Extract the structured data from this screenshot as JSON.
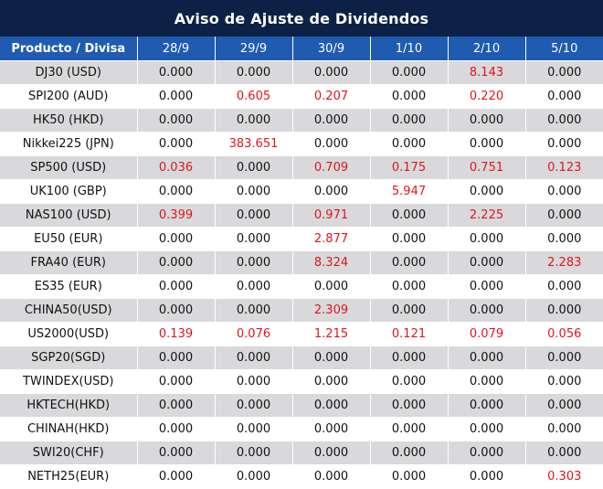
{
  "title": "Aviso de Ajuste de Dividendos",
  "header": [
    "Producto / Divisa",
    "28/9",
    "29/9",
    "30/9",
    "1/10",
    "2/10",
    "5/10"
  ],
  "colors": {
    "title_bg": "#0d2147",
    "header_bg": "#1f5bb0",
    "shaded_row": "#d9d9dc",
    "highlight_text": "#e0141e"
  },
  "rows": [
    {
      "product": "DJ30 (USD)",
      "values": [
        "0.000",
        "0.000",
        "0.000",
        "0.000",
        "8.143",
        "0.000"
      ]
    },
    {
      "product": "SPI200 (AUD)",
      "values": [
        "0.000",
        "0.605",
        "0.207",
        "0.000",
        "0.220",
        "0.000"
      ]
    },
    {
      "product": "HK50 (HKD)",
      "values": [
        "0.000",
        "0.000",
        "0.000",
        "0.000",
        "0.000",
        "0.000"
      ]
    },
    {
      "product": "Nikkei225 (JPN)",
      "values": [
        "0.000",
        "383.651",
        "0.000",
        "0.000",
        "0.000",
        "0.000"
      ]
    },
    {
      "product": "SP500 (USD)",
      "values": [
        "0.036",
        "0.000",
        "0.709",
        "0.175",
        "0.751",
        "0.123"
      ]
    },
    {
      "product": "UK100 (GBP)",
      "values": [
        "0.000",
        "0.000",
        "0.000",
        "5.947",
        "0.000",
        "0.000"
      ]
    },
    {
      "product": "NAS100 (USD)",
      "values": [
        "0.399",
        "0.000",
        "0.971",
        "0.000",
        "2.225",
        "0.000"
      ]
    },
    {
      "product": "EU50 (EUR)",
      "values": [
        "0.000",
        "0.000",
        "2.877",
        "0.000",
        "0.000",
        "0.000"
      ]
    },
    {
      "product": "FRA40 (EUR)",
      "values": [
        "0.000",
        "0.000",
        "8.324",
        "0.000",
        "0.000",
        "2.283"
      ]
    },
    {
      "product": "ES35 (EUR)",
      "values": [
        "0.000",
        "0.000",
        "0.000",
        "0.000",
        "0.000",
        "0.000"
      ]
    },
    {
      "product": "CHINA50(USD)",
      "values": [
        "0.000",
        "0.000",
        "2.309",
        "0.000",
        "0.000",
        "0.000"
      ]
    },
    {
      "product": "US2000(USD)",
      "values": [
        "0.139",
        "0.076",
        "1.215",
        "0.121",
        "0.079",
        "0.056"
      ]
    },
    {
      "product": "SGP20(SGD)",
      "values": [
        "0.000",
        "0.000",
        "0.000",
        "0.000",
        "0.000",
        "0.000"
      ]
    },
    {
      "product": "TWINDEX(USD)",
      "values": [
        "0.000",
        "0.000",
        "0.000",
        "0.000",
        "0.000",
        "0.000"
      ]
    },
    {
      "product": "HKTECH(HKD)",
      "values": [
        "0.000",
        "0.000",
        "0.000",
        "0.000",
        "0.000",
        "0.000"
      ]
    },
    {
      "product": "CHINAH(HKD)",
      "values": [
        "0.000",
        "0.000",
        "0.000",
        "0.000",
        "0.000",
        "0.000"
      ]
    },
    {
      "product": "SWI20(CHF)",
      "values": [
        "0.000",
        "0.000",
        "0.000",
        "0.000",
        "0.000",
        "0.000"
      ]
    },
    {
      "product": "NETH25(EUR)",
      "values": [
        "0.000",
        "0.000",
        "0.000",
        "0.000",
        "0.000",
        "0.303"
      ]
    }
  ]
}
